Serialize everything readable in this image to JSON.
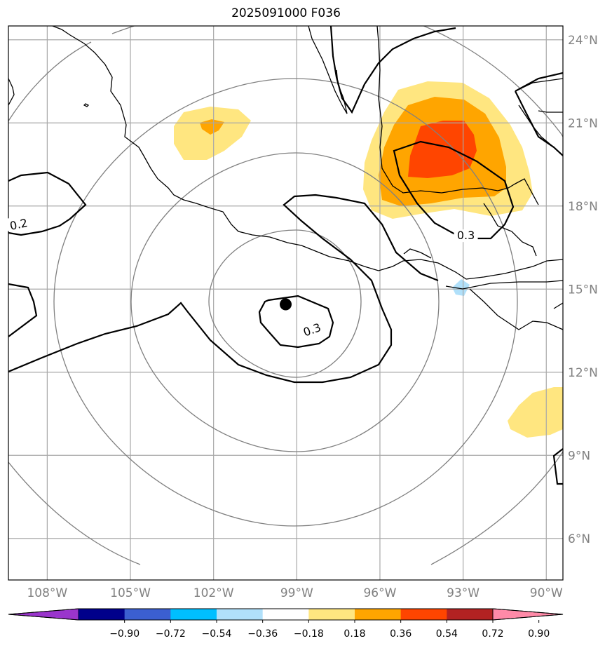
{
  "title": "2025091000 F036",
  "chart_data": {
    "type": "map",
    "lon_range": [
      -109.4,
      -89.4
    ],
    "lat_range": [
      4.5,
      24.5
    ],
    "lon_ticks": [
      {
        "value": -108,
        "label": "108°W"
      },
      {
        "value": -105,
        "label": "105°W"
      },
      {
        "value": -102,
        "label": "102°W"
      },
      {
        "value": -99,
        "label": "99°W"
      },
      {
        "value": -96,
        "label": "96°W"
      },
      {
        "value": -93,
        "label": "93°W"
      },
      {
        "value": -90,
        "label": "90°W"
      }
    ],
    "lat_ticks": [
      {
        "value": 24,
        "label": "24°N"
      },
      {
        "value": 21,
        "label": "21°N"
      },
      {
        "value": 18,
        "label": "18°N"
      },
      {
        "value": 15,
        "label": "15°N"
      },
      {
        "value": 12,
        "label": "12°N"
      },
      {
        "value": 9,
        "label": "9°N"
      },
      {
        "value": 6,
        "label": "6°N"
      }
    ],
    "center_marker": {
      "lon": -99.4,
      "lat": 14.45
    },
    "contour_labels": [
      {
        "text": "0.2",
        "lon": -109.0,
        "lat": 17.2
      },
      {
        "text": "0.3",
        "lon": -92.9,
        "lat": 16.8
      },
      {
        "text": "0.3",
        "lon": -98.4,
        "lat": 13.4
      }
    ],
    "colorbar": {
      "levels": [
        "−0.90",
        "−0.72",
        "−0.54",
        "−0.36",
        "−0.18",
        "0.18",
        "0.36",
        "0.54",
        "0.72",
        "0.90"
      ],
      "colors": [
        "#9a35cc",
        "#00008b",
        "#3b5fd0",
        "#00bfff",
        "#b0e0fa",
        "#ffffff",
        "#ffe680",
        "#ffa500",
        "#ff4500",
        "#b22222",
        "#ff8aa8"
      ],
      "extend": "both"
    },
    "grid": true
  }
}
